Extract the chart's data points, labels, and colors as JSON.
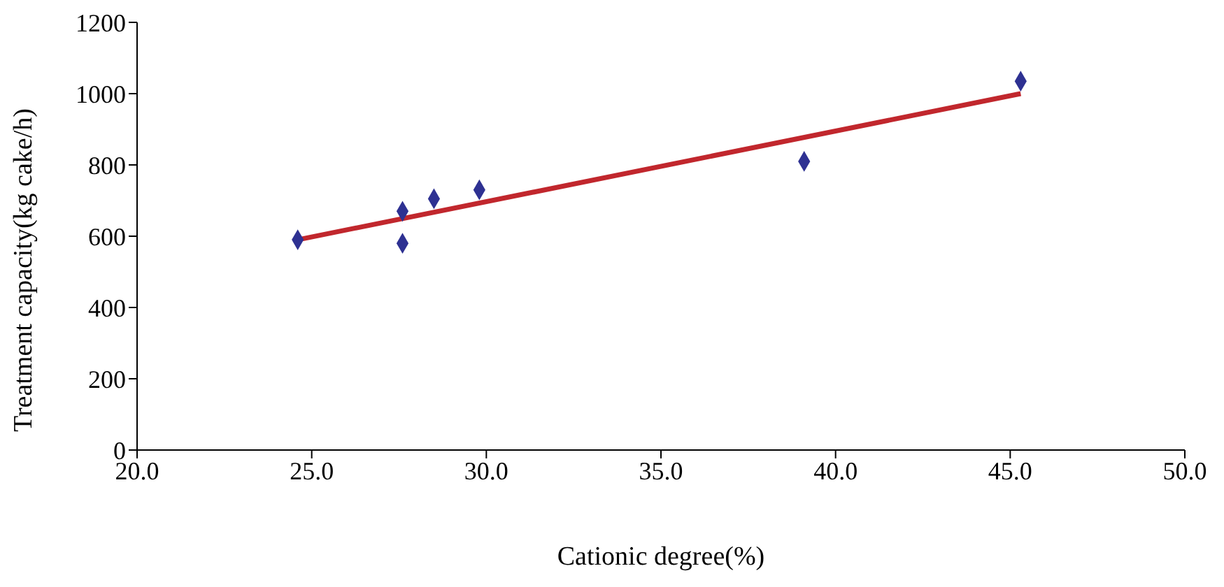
{
  "chart_data": {
    "type": "scatter",
    "xlabel": "Cationic degree(%)",
    "ylabel": "Treatment capacity(kg cake/h)",
    "xlim": [
      20,
      50
    ],
    "xticks": [
      {
        "value": 20,
        "label": "20.0"
      },
      {
        "value": 25,
        "label": "25.0"
      },
      {
        "value": 30,
        "label": "30.0"
      },
      {
        "value": 35,
        "label": "35.0"
      },
      {
        "value": 40,
        "label": "40.0"
      },
      {
        "value": 45,
        "label": "45.0"
      },
      {
        "value": 50,
        "label": "50.0"
      }
    ],
    "ylim": [
      0,
      1200
    ],
    "yticks": [
      0,
      200,
      400,
      600,
      800,
      1000,
      1200
    ],
    "grid": false,
    "series": [
      {
        "color": "#2e3192",
        "marker": "diamond",
        "x": [
          24.6,
          27.6,
          27.6,
          28.5,
          29.8,
          39.1,
          45.3
        ],
        "values": [
          590,
          670,
          580,
          705,
          730,
          810,
          1035
        ]
      },
      {
        "type": "line",
        "color": "#c1272d",
        "marker": "none",
        "x": [
          24.6,
          45.3
        ],
        "values": [
          590,
          1000
        ]
      }
    ]
  }
}
